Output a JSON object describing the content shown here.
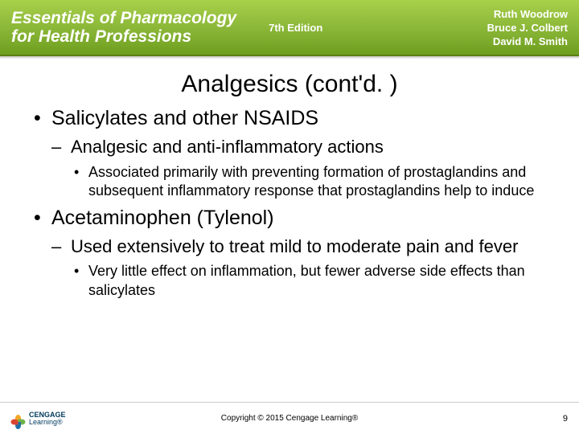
{
  "header": {
    "book_title_line1": "Essentials of Pharmacology",
    "book_title_line2": "for Health Professions",
    "edition": "7th Edition",
    "authors": [
      "Ruth Woodrow",
      "Bruce J. Colbert",
      "David M. Smith"
    ],
    "bg_gradient_top": "#a8d04a",
    "bg_gradient_mid": "#8cb839",
    "bg_gradient_bot": "#6e9e1f"
  },
  "slide": {
    "title": "Analgesics (cont'd. )",
    "bullets": [
      {
        "text": "Salicylates and other NSAIDS",
        "children": [
          {
            "text": "Analgesic and anti-inflammatory actions",
            "children": [
              {
                "text": "Associated primarily with preventing formation of prostaglandins and subsequent inflammatory response that prostaglandins help to induce"
              }
            ]
          }
        ]
      },
      {
        "text": "Acetaminophen (Tylenol)",
        "children": [
          {
            "text": "Used extensively to treat mild to moderate pain and fever",
            "children": [
              {
                "text": "Very little effect on inflammation, but fewer adverse side effects than salicylates"
              }
            ]
          }
        ]
      }
    ]
  },
  "footer": {
    "logo_brand": "CENGAGE",
    "logo_sub": "Learning®",
    "logo_colors": [
      "#f5a623",
      "#6fb24a",
      "#1e6fa8",
      "#d9442f"
    ],
    "copyright": "Copyright © 2015 Cengage Learning®",
    "page_number": "9"
  },
  "typography": {
    "title_fontsize": 30,
    "lvl1_fontsize": 25,
    "lvl2_fontsize": 22,
    "lvl3_fontsize": 18,
    "text_color": "#000000"
  }
}
